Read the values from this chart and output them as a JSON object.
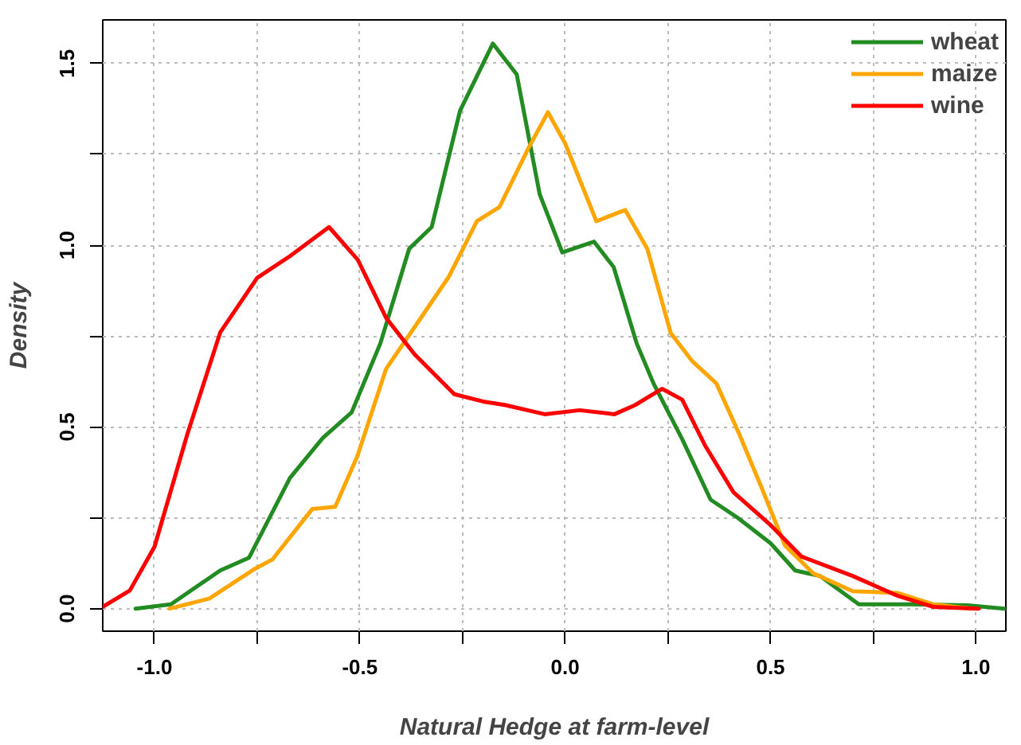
{
  "chart_data": {
    "type": "line",
    "xlabel": "Natural Hedge at farm-level",
    "ylabel": "Density",
    "xlim": [
      -1.126,
      1.073
    ],
    "ylim": [
      -0.062,
      1.62
    ],
    "xticks": [
      {
        "value": -1,
        "label": "-1.0"
      },
      {
        "value": -0.75,
        "label": null
      },
      {
        "value": -0.5,
        "label": "-0.5"
      },
      {
        "value": -0.25,
        "label": null
      },
      {
        "value": 0,
        "label": "0.0"
      },
      {
        "value": 0.25,
        "label": null
      },
      {
        "value": 0.5,
        "label": "0.5"
      },
      {
        "value": 0.75,
        "label": null
      },
      {
        "value": 1,
        "label": "1.0"
      }
    ],
    "yticks": [
      {
        "value": 0,
        "label": "0.0"
      },
      {
        "value": 0.25,
        "label": null
      },
      0.5,
      {
        "value": 0.75,
        "label": null
      },
      {
        "value": 1,
        "label": "1.0"
      },
      {
        "value": 1.25,
        "label": null
      },
      1.5
    ],
    "grid": true,
    "legend": "top right",
    "line_style": "solid",
    "marker": "none",
    "series": [
      {
        "name": "wheat",
        "color": "#228b22",
        "x": [
          -1.046,
          -0.96,
          -0.84,
          -0.77,
          -0.67,
          -0.59,
          -0.52,
          -0.45,
          -0.38,
          -0.325,
          -0.256,
          -0.176,
          -0.118,
          -0.062,
          -0.007,
          0.07,
          0.118,
          0.174,
          0.215,
          0.285,
          0.354,
          0.42,
          0.5,
          0.56,
          0.62,
          0.715,
          0.84,
          0.98,
          1.07
        ],
        "values": [
          0,
          0.012,
          0.105,
          0.14,
          0.36,
          0.47,
          0.54,
          0.73,
          0.99,
          1.05,
          1.37,
          1.555,
          1.47,
          1.14,
          0.98,
          1.01,
          0.94,
          0.73,
          0.62,
          0.466,
          0.3,
          0.25,
          0.18,
          0.105,
          0.09,
          0.012,
          0.012,
          0.009,
          0
        ]
      },
      {
        "name": "maize",
        "color": "#ffa500",
        "x": [
          -0.963,
          -0.866,
          -0.755,
          -0.713,
          -0.616,
          -0.56,
          -0.506,
          -0.436,
          -0.367,
          -0.284,
          -0.215,
          -0.16,
          -0.09,
          -0.042,
          0,
          0.076,
          0.146,
          0.2,
          0.257,
          0.31,
          0.368,
          0.424,
          0.48,
          0.535,
          0.604,
          0.7,
          0.81,
          0.896,
          0.99
        ],
        "values": [
          0,
          0.028,
          0.11,
          0.135,
          0.274,
          0.28,
          0.42,
          0.66,
          0.774,
          0.912,
          1.066,
          1.105,
          1.266,
          1.366,
          1.28,
          1.066,
          1.097,
          0.99,
          0.758,
          0.68,
          0.62,
          0.48,
          0.328,
          0.174,
          0.097,
          0.048,
          0.043,
          0.012,
          0
        ]
      },
      {
        "name": "wine",
        "color": "#ff0000",
        "x": [
          -1.126,
          -1.06,
          -1.0,
          -0.92,
          -0.84,
          -0.75,
          -0.67,
          -0.575,
          -0.505,
          -0.436,
          -0.367,
          -0.27,
          -0.2,
          -0.145,
          -0.05,
          0.035,
          0.12,
          0.17,
          0.236,
          0.285,
          0.34,
          0.41,
          0.5,
          0.576,
          0.7,
          0.81,
          0.896,
          1.007
        ],
        "values": [
          0.005,
          0.05,
          0.17,
          0.48,
          0.76,
          0.91,
          0.97,
          1.05,
          0.96,
          0.8,
          0.7,
          0.59,
          0.57,
          0.56,
          0.535,
          0.546,
          0.535,
          0.56,
          0.605,
          0.575,
          0.45,
          0.32,
          0.23,
          0.143,
          0.09,
          0.035,
          0.005,
          0
        ]
      }
    ]
  }
}
